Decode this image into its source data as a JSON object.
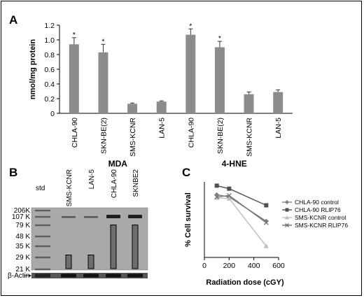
{
  "panels": {
    "a": "A",
    "b": "B",
    "c": "C"
  },
  "chart_data": [
    {
      "panel": "A",
      "type": "bar",
      "ylabel": "nmol/mg protein",
      "ylim": [
        0,
        1.2
      ],
      "yticks": [
        "0",
        "0.2",
        "0.4",
        "0.6",
        "0.8",
        "1.0",
        "1.2"
      ],
      "bar_color": "#8c8c8c",
      "groups": [
        {
          "label": "MDA",
          "bars": [
            {
              "category": "CHLA-90",
              "value": 0.94,
              "error": 0.09,
              "marker": "*"
            },
            {
              "category": "SKN-BE(2)",
              "value": 0.83,
              "error": 0.11,
              "marker": "*"
            },
            {
              "category": "SMS-KCNR",
              "value": 0.13,
              "error": 0.01,
              "marker": ""
            },
            {
              "category": "LAN-5",
              "value": 0.16,
              "error": 0.01,
              "marker": ""
            }
          ]
        },
        {
          "label": "4-HNE",
          "bars": [
            {
              "category": "CHLA-90",
              "value": 1.07,
              "error": 0.08,
              "marker": "*"
            },
            {
              "category": "SKN-BE(2)",
              "value": 0.9,
              "error": 0.08,
              "marker": "*"
            },
            {
              "category": "SMS-KCNR",
              "value": 0.26,
              "error": 0.03,
              "marker": ""
            },
            {
              "category": "LAN-5",
              "value": 0.29,
              "error": 0.03,
              "marker": ""
            }
          ]
        }
      ]
    },
    {
      "panel": "C",
      "type": "line",
      "xlabel": "Radiation dose (cGY)",
      "ylabel": "% Cell survival",
      "xlim": [
        0,
        600
      ],
      "xticks": [
        "0",
        "200",
        "400",
        "600"
      ],
      "legend_position": "right",
      "x": [
        100,
        200,
        500
      ],
      "series": [
        {
          "name": "CHLA-90 control",
          "values": [
            83,
            80,
            48
          ],
          "color": "#808080",
          "marker": "diamond"
        },
        {
          "name": "CHLA-90 RLIP76",
          "values": [
            95,
            91,
            69
          ],
          "color": "#505050",
          "marker": "square"
        },
        {
          "name": "SMS-KCNR control",
          "values": [
            79,
            78,
            15
          ],
          "color": "#bdbdbd",
          "marker": "triangle"
        },
        {
          "name": "SMS-KCNR RLIP76",
          "values": [
            80,
            82,
            46
          ],
          "color": "#707070",
          "marker": "x"
        }
      ]
    }
  ],
  "blot": {
    "panel": "B",
    "std_label": "std",
    "lanes": [
      "SMS-KCNR",
      "LAN-5",
      "CHLA-90",
      "SKNBE2"
    ],
    "markers": [
      "206K",
      "107 K",
      "79 K",
      "48 K",
      "35 K",
      "29 K",
      "21 K"
    ],
    "loading_control": "β-Actin",
    "relative_intensity": [
      0.25,
      0.25,
      0.8,
      0.8
    ]
  }
}
